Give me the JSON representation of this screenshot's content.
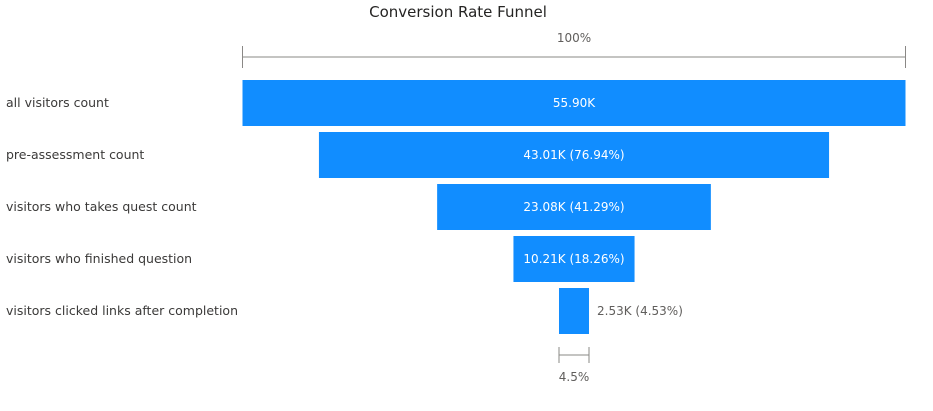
{
  "chart_data": {
    "type": "funnel",
    "title": "Conversion Rate Funnel",
    "top_scale_label": "100%",
    "bottom_scale_label": "4.5%",
    "bar_color": "#118dff",
    "stages": [
      {
        "category": "all visitors count",
        "value": 55900,
        "label": "55.90K"
      },
      {
        "category": "pre-assessment count",
        "value": 43010,
        "label": "43.01K (76.94%)"
      },
      {
        "category": "visitors who takes quest count",
        "value": 23080,
        "label": "23.08K (41.29%)"
      },
      {
        "category": "visitors who finished question",
        "value": 10210,
        "label": "10.21K (18.26%)"
      },
      {
        "category": "visitors clicked links after completion",
        "value": 2530,
        "label": "2.53K (4.53%)"
      }
    ]
  }
}
